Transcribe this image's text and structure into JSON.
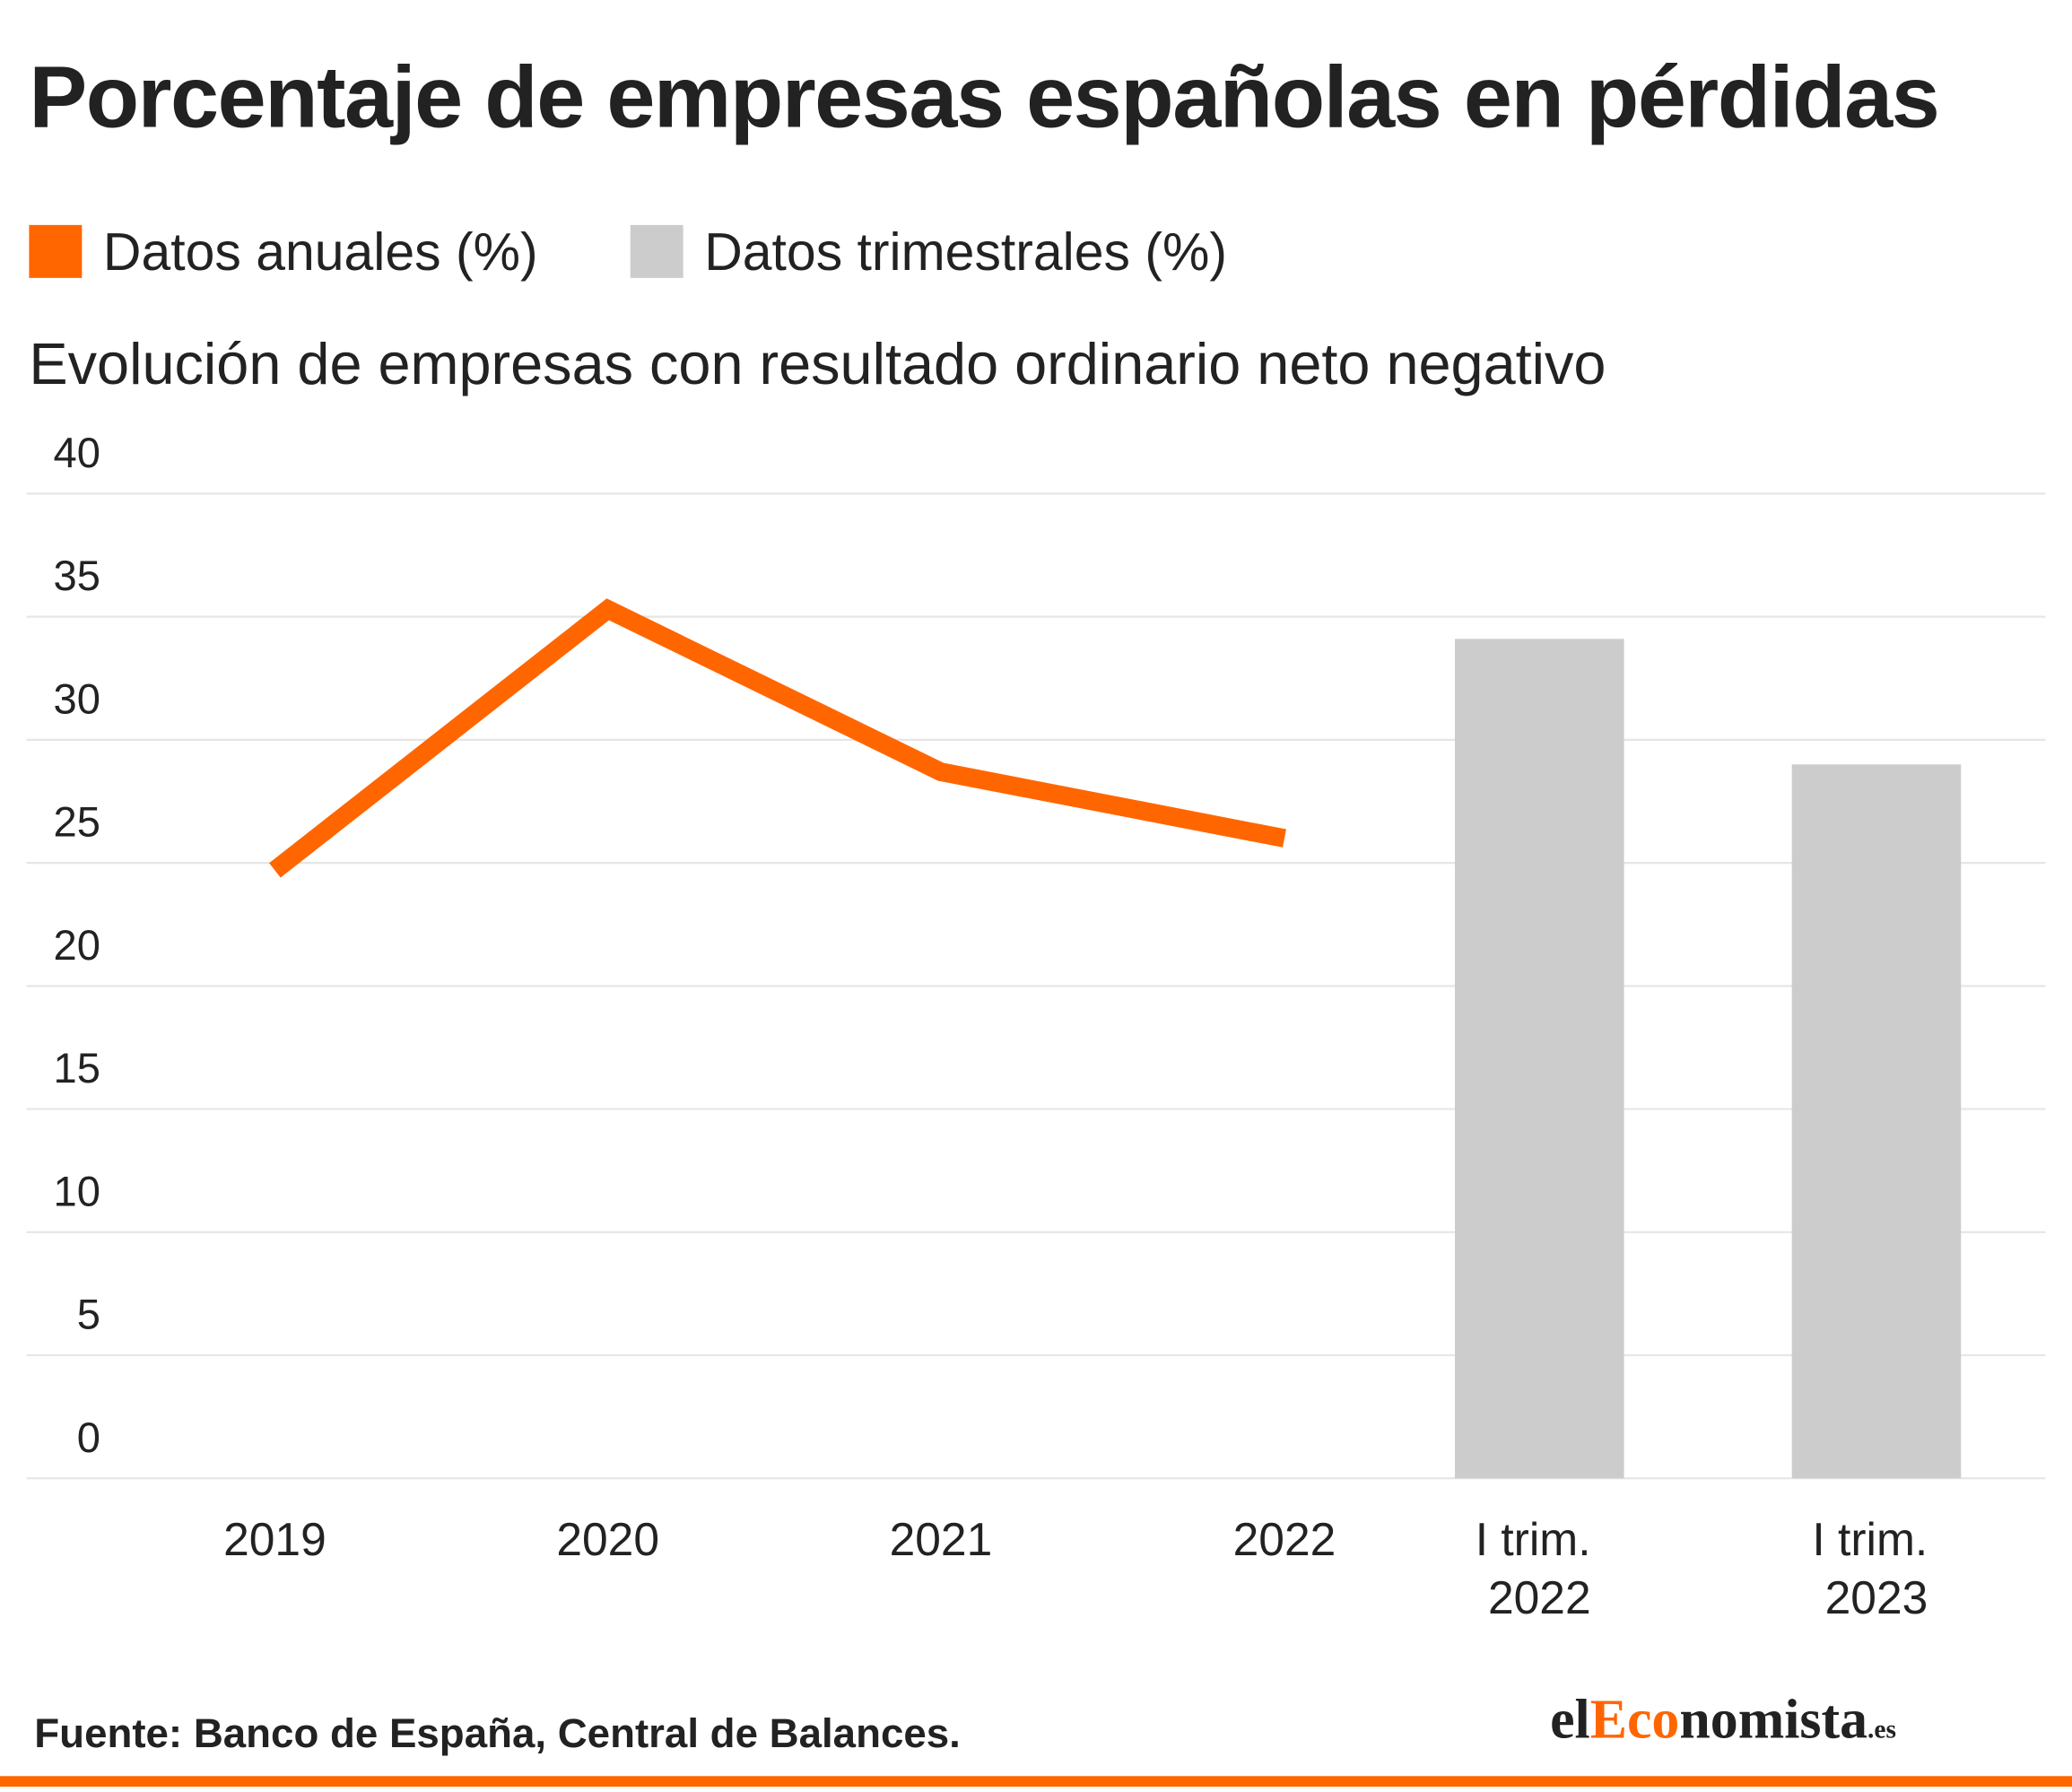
{
  "chart_data": {
    "type": "combo",
    "title": "Porcentaje de empresas españolas en pérdidas",
    "subtitle": "Evolución de empresas con resultado ordinario neto negativo",
    "categories": [
      "2019",
      "2020",
      "2021",
      "2022",
      "I trim. 2022",
      "I trim. 2023"
    ],
    "series": [
      {
        "name": "Datos anuales (%)",
        "type": "line",
        "color": "#ff6600",
        "values": [
          24.7,
          35.3,
          28.7,
          26.0,
          null,
          null
        ]
      },
      {
        "name": "Datos trimestrales (%)",
        "type": "bar",
        "color": "#cccccc",
        "values": [
          null,
          null,
          null,
          null,
          34.1,
          29.0
        ]
      }
    ],
    "ylim": [
      0,
      40
    ],
    "yticks": [
      0,
      5,
      10,
      15,
      20,
      25,
      30,
      35,
      40
    ],
    "grid": true,
    "legend": "top-left",
    "source": "Fuente: Banco de España, Central de Balances.",
    "logo": [
      "el",
      "Eco",
      "nomista",
      ".es"
    ]
  }
}
